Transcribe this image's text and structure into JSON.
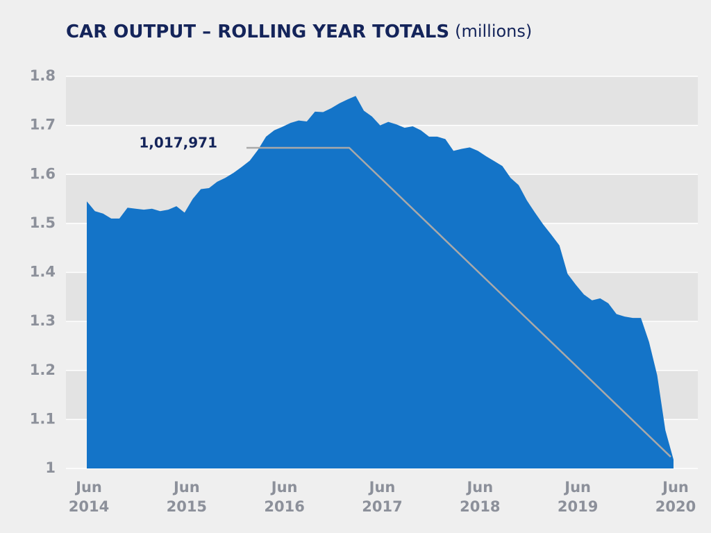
{
  "chart_data": {
    "type": "area",
    "title": "CAR OUTPUT – ROLLING YEAR TOTALS",
    "units": "(millions)",
    "annotation": "1,017,971",
    "color": "#1474c8",
    "categories": [
      "Jun 2014",
      null,
      null,
      null,
      null,
      null,
      null,
      null,
      null,
      null,
      null,
      null,
      "Jun 2015",
      null,
      null,
      null,
      null,
      null,
      null,
      null,
      null,
      null,
      null,
      null,
      "Jun 2016",
      null,
      null,
      null,
      null,
      null,
      null,
      null,
      null,
      null,
      null,
      null,
      "Jun 2017",
      null,
      null,
      null,
      null,
      null,
      null,
      null,
      null,
      null,
      null,
      null,
      "Jun 2018",
      null,
      null,
      null,
      null,
      null,
      null,
      null,
      null,
      null,
      null,
      null,
      "Jun 2019",
      null,
      null,
      null,
      null,
      null,
      null,
      null,
      null,
      null,
      null,
      null,
      "Jun 2020"
    ],
    "values": [
      1.545,
      1.525,
      1.52,
      1.51,
      1.51,
      1.532,
      1.53,
      1.528,
      1.53,
      1.525,
      1.528,
      1.535,
      1.522,
      1.55,
      1.57,
      1.572,
      1.585,
      1.593,
      1.603,
      1.615,
      1.628,
      1.65,
      1.677,
      1.69,
      1.697,
      1.705,
      1.71,
      1.708,
      1.728,
      1.727,
      1.735,
      1.745,
      1.753,
      1.76,
      1.73,
      1.718,
      1.7,
      1.707,
      1.702,
      1.695,
      1.698,
      1.69,
      1.677,
      1.677,
      1.672,
      1.648,
      1.652,
      1.655,
      1.648,
      1.637,
      1.627,
      1.617,
      1.593,
      1.578,
      1.547,
      1.522,
      1.498,
      1.477,
      1.455,
      1.397,
      1.375,
      1.355,
      1.343,
      1.347,
      1.337,
      1.315,
      1.31,
      1.307,
      1.307,
      1.258,
      1.19,
      1.078,
      1.017971
    ],
    "ylim": [
      1,
      1.8
    ],
    "yticks": [
      1,
      1.1,
      1.2,
      1.3,
      1.4,
      1.5,
      1.6,
      1.7,
      1.8
    ],
    "grid": true
  }
}
